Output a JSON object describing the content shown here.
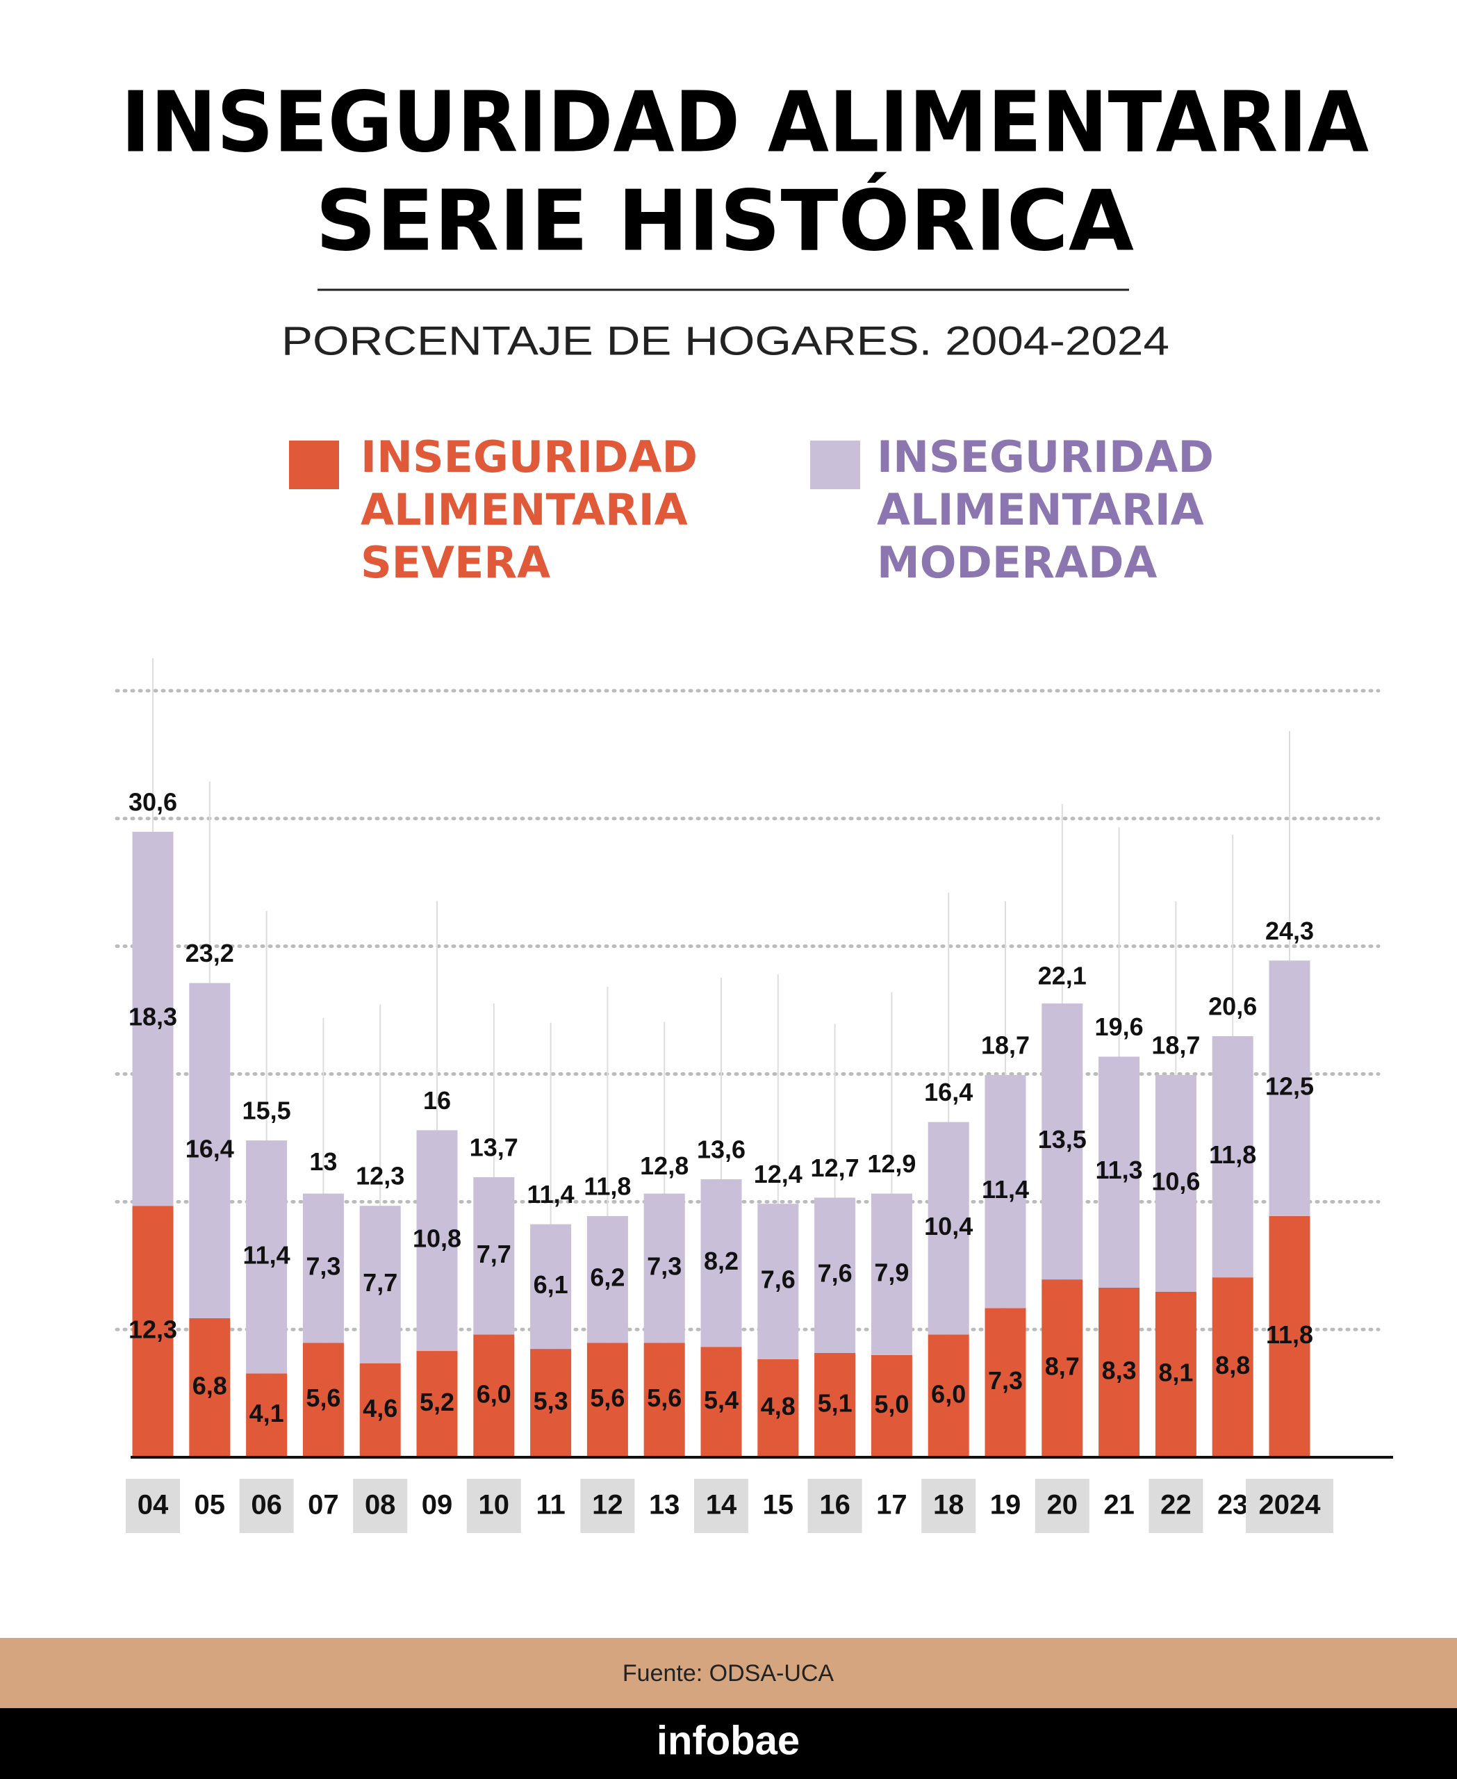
{
  "chart_data": {
    "type": "stacked-bar",
    "title_lines": [
      "INSEGURIDAD ALIMENTARIA",
      "SERIE HISTÓRICA"
    ],
    "subtitle": "PORCENTAJE DE HOGARES. 2004-2024",
    "categories": [
      "04",
      "05",
      "06",
      "07",
      "08",
      "09",
      "10",
      "11",
      "12",
      "13",
      "14",
      "15",
      "16",
      "17",
      "18",
      "19",
      "20",
      "21",
      "22",
      "23",
      "2024"
    ],
    "series": [
      {
        "name": "INSEGURIDAD ALIMENTARIA SEVERA",
        "color": "#e05a3a",
        "text_color": "#e05a3a",
        "values": [
          12.3,
          6.8,
          4.1,
          5.6,
          4.6,
          5.2,
          6.0,
          5.3,
          5.6,
          5.6,
          5.4,
          4.8,
          5.1,
          5.0,
          6.0,
          7.3,
          8.7,
          8.3,
          8.1,
          8.8,
          11.8
        ],
        "value_labels": [
          "12,3",
          "6,8",
          "4,1",
          "5,6",
          "4,6",
          "5,2",
          "6,0",
          "5,3",
          "5,6",
          "5,6",
          "5,4",
          "4,8",
          "5,1",
          "5,0",
          "6,0",
          "7,3",
          "8,7",
          "8,3",
          "8,1",
          "8,8",
          "11,8"
        ]
      },
      {
        "name": "INSEGURIDAD ALIMENTARIA MODERADA",
        "color": "#c9bfd8",
        "text_color": "#8b76b0",
        "values": [
          18.3,
          16.4,
          11.4,
          7.3,
          7.7,
          10.8,
          7.7,
          6.1,
          6.2,
          7.3,
          8.2,
          7.6,
          7.6,
          7.9,
          10.4,
          11.4,
          13.5,
          11.3,
          10.6,
          11.8,
          12.5
        ],
        "value_labels": [
          "18,3",
          "16,4",
          "11,4",
          "7,3",
          "7,7",
          "10,8",
          "7,7",
          "6,1",
          "6,2",
          "7,3",
          "8,2",
          "7,6",
          "7,6",
          "7,9",
          "10,4",
          "11,4",
          "13,5",
          "11,3",
          "10,6",
          "11,8",
          "12,5"
        ]
      }
    ],
    "totals": [
      30.6,
      23.2,
      15.5,
      13,
      12.3,
      16,
      13.7,
      11.4,
      11.8,
      12.8,
      13.6,
      12.4,
      12.7,
      12.9,
      16.4,
      18.7,
      22.1,
      19.6,
      18.7,
      20.6,
      24.3
    ],
    "total_labels": [
      "30,6",
      "23,2",
      "15,5",
      "13",
      "12,3",
      "16",
      "13,7",
      "11,4",
      "11,8",
      "12,8",
      "13,6",
      "12,4",
      "12,7",
      "12,9",
      "16,4",
      "18,7",
      "22,1",
      "19,6",
      "18,7",
      "20,6",
      "24,3"
    ],
    "ylim": [
      0,
      37.5
    ],
    "yticks": [
      6.25,
      12.5,
      18.75,
      25,
      31.25,
      37.5
    ],
    "grid": true,
    "source": "Fuente: ODSA-UCA",
    "brand": "infobae"
  }
}
